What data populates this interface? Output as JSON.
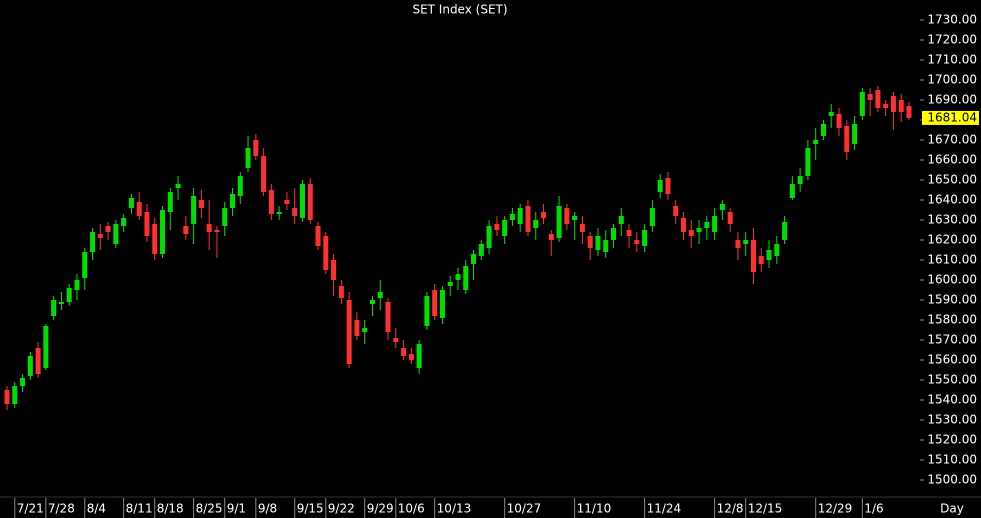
{
  "chart_data": {
    "type": "candlestick",
    "title": "SET Index (SET)",
    "x_label": "Day",
    "up_color": "#00e000",
    "down_color": "#ff3030",
    "last_value": 1681.04,
    "last_color": "#ffff00",
    "ylim": [
      1495,
      1735
    ],
    "yticks": [
      {
        "value": 1500,
        "label": "1500.00"
      },
      {
        "value": 1510,
        "label": "1510.00"
      },
      {
        "value": 1520,
        "label": "1520.00"
      },
      {
        "value": 1530,
        "label": "1530.00"
      },
      {
        "value": 1540,
        "label": "1540.00"
      },
      {
        "value": 1550,
        "label": "1550.00"
      },
      {
        "value": 1560,
        "label": "1560.00"
      },
      {
        "value": 1570,
        "label": "1570.00"
      },
      {
        "value": 1580,
        "label": "1580.00"
      },
      {
        "value": 1590,
        "label": "1590.00"
      },
      {
        "value": 1600,
        "label": "1600.00"
      },
      {
        "value": 1610,
        "label": "1610.00"
      },
      {
        "value": 1620,
        "label": "1620.00"
      },
      {
        "value": 1630,
        "label": "1630.00"
      },
      {
        "value": 1640,
        "label": "1640.00"
      },
      {
        "value": 1650,
        "label": "1650.00"
      },
      {
        "value": 1660,
        "label": "1660.00"
      },
      {
        "value": 1670,
        "label": "1670.00"
      },
      {
        "value": 1680,
        "label": "1680.00"
      },
      {
        "value": 1690,
        "label": "1690.00"
      },
      {
        "value": 1700,
        "label": "1700.00"
      },
      {
        "value": 1710,
        "label": "1710.00"
      },
      {
        "value": 1720,
        "label": "1720.00"
      },
      {
        "value": 1730,
        "label": "1730.00"
      }
    ],
    "categories": [
      null,
      "7/21",
      null,
      null,
      null,
      "7/28",
      null,
      null,
      null,
      null,
      "8/4",
      null,
      null,
      null,
      null,
      "8/11",
      null,
      null,
      null,
      "8/18",
      null,
      null,
      null,
      null,
      "8/25",
      null,
      null,
      null,
      "9/1",
      null,
      null,
      null,
      "9/8",
      null,
      null,
      null,
      null,
      "9/15",
      null,
      null,
      null,
      "9/22",
      null,
      null,
      null,
      null,
      "9/29",
      null,
      null,
      null,
      "10/6",
      null,
      null,
      null,
      null,
      "10/13",
      null,
      null,
      null,
      null,
      null,
      null,
      null,
      null,
      "10/27",
      null,
      null,
      null,
      null,
      null,
      null,
      null,
      null,
      "11/10",
      null,
      null,
      null,
      null,
      null,
      null,
      null,
      null,
      "11/24",
      null,
      null,
      null,
      null,
      null,
      null,
      null,
      null,
      "12/8",
      null,
      null,
      null,
      "12/15",
      null,
      null,
      null,
      null,
      null,
      null,
      null,
      null,
      "12/29",
      null,
      null,
      null,
      null,
      null,
      "1/6",
      null,
      null,
      null,
      null,
      null,
      null
    ],
    "candles": [
      [
        1545,
        1547,
        1535,
        1538
      ],
      [
        1538,
        1549,
        1536,
        1547
      ],
      [
        1547,
        1553,
        1544,
        1551
      ],
      [
        1552,
        1564,
        1550,
        1562
      ],
      [
        1566,
        1569,
        1551,
        1553
      ],
      [
        1556,
        1578,
        1555,
        1577
      ],
      [
        1582,
        1592,
        1580,
        1590
      ],
      [
        1588,
        1594,
        1585,
        1589
      ],
      [
        1589,
        1598,
        1587,
        1596
      ],
      [
        1595,
        1603,
        1590,
        1600
      ],
      [
        1601,
        1616,
        1595,
        1614
      ],
      [
        1614,
        1626,
        1610,
        1624
      ],
      [
        1623,
        1628,
        1615,
        1621
      ],
      [
        1627,
        1629,
        1620,
        1624
      ],
      [
        1618,
        1630,
        1616,
        1628
      ],
      [
        1627,
        1633,
        1624,
        1631
      ],
      [
        1636,
        1643,
        1633,
        1641
      ],
      [
        1639,
        1644,
        1630,
        1632
      ],
      [
        1634,
        1638,
        1619,
        1622
      ],
      [
        1628,
        1631,
        1610,
        1613
      ],
      [
        1613,
        1637,
        1611,
        1635
      ],
      [
        1634,
        1646,
        1625,
        1644
      ],
      [
        1646,
        1652,
        1640,
        1648
      ],
      [
        1627,
        1632,
        1620,
        1623
      ],
      [
        1628,
        1646,
        1618,
        1642
      ],
      [
        1640,
        1645,
        1631,
        1636
      ],
      [
        1628,
        1640,
        1615,
        1624
      ],
      [
        1625,
        1627,
        1611,
        1624
      ],
      [
        1627,
        1639,
        1622,
        1636
      ],
      [
        1636,
        1646,
        1632,
        1643
      ],
      [
        1642,
        1654,
        1638,
        1652
      ],
      [
        1656,
        1672,
        1654,
        1666
      ],
      [
        1670,
        1673,
        1660,
        1662
      ],
      [
        1662,
        1666,
        1642,
        1644
      ],
      [
        1645,
        1648,
        1630,
        1633
      ],
      [
        1633,
        1637,
        1630,
        1634
      ],
      [
        1640,
        1644,
        1635,
        1638
      ],
      [
        1636,
        1646,
        1628,
        1632
      ],
      [
        1631,
        1650,
        1629,
        1648
      ],
      [
        1648,
        1651,
        1628,
        1630
      ],
      [
        1627,
        1629,
        1615,
        1617
      ],
      [
        1622,
        1624,
        1603,
        1605
      ],
      [
        1610,
        1613,
        1592,
        1600
      ],
      [
        1597,
        1600,
        1588,
        1591
      ],
      [
        1590,
        1594,
        1556,
        1558
      ],
      [
        1580,
        1584,
        1570,
        1572
      ],
      [
        1574,
        1580,
        1568,
        1576
      ],
      [
        1588,
        1592,
        1582,
        1590
      ],
      [
        1591,
        1600,
        1585,
        1594
      ],
      [
        1589,
        1591,
        1570,
        1574
      ],
      [
        1571,
        1576,
        1566,
        1569
      ],
      [
        1566,
        1570,
        1560,
        1562
      ],
      [
        1563,
        1566,
        1558,
        1560
      ],
      [
        1556,
        1570,
        1553,
        1568
      ],
      [
        1577,
        1594,
        1575,
        1592
      ],
      [
        1595,
        1598,
        1580,
        1582
      ],
      [
        1581,
        1597,
        1578,
        1595
      ],
      [
        1597,
        1602,
        1592,
        1599
      ],
      [
        1600,
        1606,
        1595,
        1603
      ],
      [
        1595,
        1610,
        1593,
        1607
      ],
      [
        1608,
        1615,
        1600,
        1613
      ],
      [
        1612,
        1620,
        1610,
        1618
      ],
      [
        1616,
        1630,
        1613,
        1627
      ],
      [
        1628,
        1632,
        1622,
        1625
      ],
      [
        1622,
        1632,
        1618,
        1630
      ],
      [
        1630,
        1636,
        1627,
        1633
      ],
      [
        1628,
        1638,
        1624,
        1636
      ],
      [
        1637,
        1640,
        1622,
        1624
      ],
      [
        1626,
        1634,
        1620,
        1630
      ],
      [
        1634,
        1638,
        1628,
        1631
      ],
      [
        1623,
        1625,
        1612,
        1620
      ],
      [
        1621,
        1642,
        1619,
        1637
      ],
      [
        1636,
        1638,
        1625,
        1628
      ],
      [
        1630,
        1634,
        1620,
        1632
      ],
      [
        1628,
        1632,
        1618,
        1624
      ],
      [
        1622,
        1624,
        1610,
        1616
      ],
      [
        1615,
        1626,
        1612,
        1622
      ],
      [
        1614,
        1625,
        1611,
        1620
      ],
      [
        1620,
        1628,
        1616,
        1626
      ],
      [
        1628,
        1636,
        1622,
        1632
      ],
      [
        1625,
        1628,
        1616,
        1622
      ],
      [
        1620,
        1624,
        1614,
        1618
      ],
      [
        1617,
        1628,
        1614,
        1625
      ],
      [
        1627,
        1640,
        1624,
        1636
      ],
      [
        1644,
        1653,
        1641,
        1650
      ],
      [
        1651,
        1654,
        1640,
        1643
      ],
      [
        1637,
        1640,
        1628,
        1632
      ],
      [
        1631,
        1634,
        1620,
        1624
      ],
      [
        1625,
        1630,
        1616,
        1622
      ],
      [
        1624,
        1630,
        1618,
        1626
      ],
      [
        1626,
        1632,
        1620,
        1629
      ],
      [
        1624,
        1636,
        1620,
        1632
      ],
      [
        1635,
        1640,
        1630,
        1638
      ],
      [
        1634,
        1636,
        1624,
        1628
      ],
      [
        1620,
        1624,
        1610,
        1616
      ],
      [
        1618,
        1624,
        1612,
        1620
      ],
      [
        1620,
        1626,
        1598,
        1604
      ],
      [
        1612,
        1616,
        1604,
        1608
      ],
      [
        1610,
        1620,
        1606,
        1615
      ],
      [
        1612,
        1622,
        1608,
        1618
      ],
      [
        1620,
        1632,
        1618,
        1629
      ],
      [
        1641,
        1652,
        1640,
        1648
      ],
      [
        1648,
        1656,
        1644,
        1652
      ],
      [
        1652,
        1670,
        1650,
        1666
      ],
      [
        1668,
        1676,
        1660,
        1670
      ],
      [
        1672,
        1680,
        1670,
        1678
      ],
      [
        1682,
        1688,
        1676,
        1684
      ],
      [
        1683,
        1686,
        1672,
        1676
      ],
      [
        1677,
        1680,
        1660,
        1664
      ],
      [
        1668,
        1682,
        1665,
        1678
      ],
      [
        1682,
        1696,
        1680,
        1694
      ],
      [
        1693,
        1696,
        1682,
        1690
      ],
      [
        1695,
        1697,
        1684,
        1686
      ],
      [
        1688,
        1690,
        1682,
        1686
      ],
      [
        1692,
        1694,
        1675,
        1684
      ],
      [
        1690,
        1693,
        1679,
        1684
      ],
      [
        1687,
        1689,
        1680,
        1681.04
      ]
    ]
  }
}
